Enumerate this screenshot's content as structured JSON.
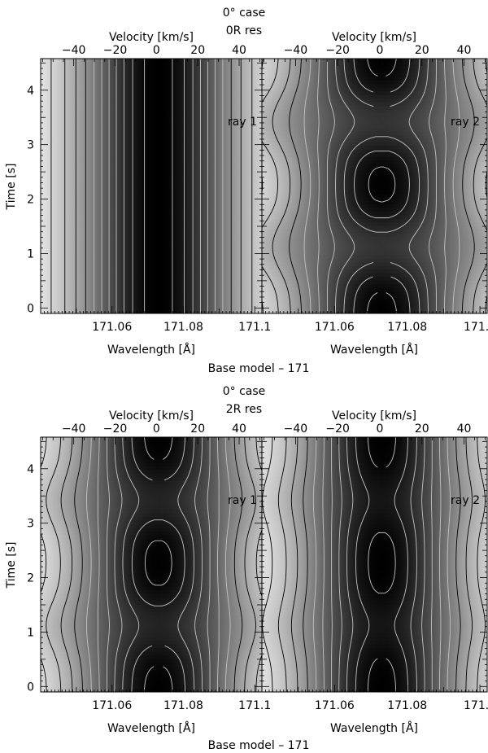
{
  "chart_data": [
    {
      "type": "heatmap",
      "header": [
        "0° case",
        "0R res"
      ],
      "footer": "Base model – 171",
      "ylabel": "Time [s]",
      "xlabel": "Wavelength [Å]",
      "x2label": "Velocity [km/s]",
      "ylim": [
        -0.1,
        4.58
      ],
      "xlim": [
        171.04,
        171.102
      ],
      "v2lim": [
        -56,
        51
      ],
      "yticks": [
        0,
        1,
        2,
        3,
        4
      ],
      "xticks": [
        171.06,
        171.08,
        171.1
      ],
      "xtick_labels": [
        "171.06",
        "171.08",
        "171.1"
      ],
      "vticks": [
        -40,
        -20,
        0,
        20,
        40
      ],
      "vtick_labels": [
        "−40",
        "−20",
        "0",
        "20",
        "40"
      ],
      "panels": [
        {
          "label": "ray 1",
          "line_center": 171.073,
          "base_width_kms": 24,
          "amplitude": 0.0,
          "peak_times": [
            1.12,
            3.42
          ],
          "peak_width": 0.4
        },
        {
          "label": "ray 2",
          "line_center": 171.073,
          "base_width_kms": 26,
          "amplitude": 0.35,
          "peak_times": [
            1.12,
            3.42
          ],
          "peak_width": 0.4
        }
      ]
    },
    {
      "type": "heatmap",
      "header": [
        "0° case",
        "2R res"
      ],
      "footer": "Base model – 171",
      "ylabel": "Time [s]",
      "xlabel": "Wavelength [Å]",
      "x2label": "Velocity [km/s]",
      "ylim": [
        -0.1,
        4.58
      ],
      "xlim": [
        171.04,
        171.102
      ],
      "v2lim": [
        -56,
        51
      ],
      "yticks": [
        0,
        1,
        2,
        3,
        4
      ],
      "xticks": [
        171.06,
        171.08,
        171.1
      ],
      "xtick_labels": [
        "171.06",
        "171.08",
        "171.1"
      ],
      "vticks": [
        -40,
        -20,
        0,
        20,
        40
      ],
      "vtick_labels": [
        "−40",
        "−20",
        "0",
        "20",
        "40"
      ],
      "panels": [
        {
          "label": "ray 1",
          "line_center": 171.073,
          "base_width_kms": 25,
          "amplitude": 0.22,
          "peak_times": [
            1.12,
            3.42
          ],
          "peak_width": 0.4
        },
        {
          "label": "ray 2",
          "line_center": 171.073,
          "base_width_kms": 24,
          "amplitude": 0.12,
          "peak_times": [
            1.12,
            3.42
          ],
          "peak_width": 0.4
        }
      ]
    }
  ]
}
